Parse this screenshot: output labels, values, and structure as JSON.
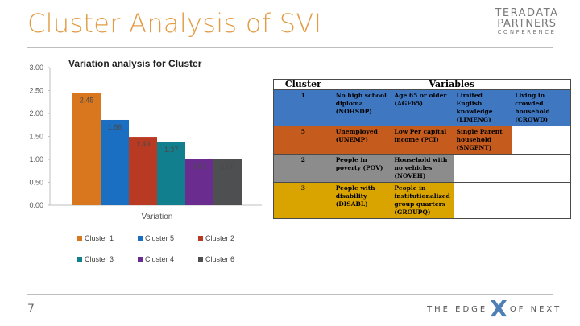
{
  "slide": {
    "title": "Cluster Analysis of SVI",
    "page_number": "7",
    "logo": {
      "line1": "TERADATA",
      "line2": "PARTNERS",
      "line3": "CONFERENCE"
    },
    "tagline": {
      "left": "THE EDGE",
      "mark": "X",
      "right": "OF NEXT",
      "mark_color": "#4e7fb5"
    }
  },
  "chart_data": {
    "type": "bar",
    "title": "Variation analysis for Cluster",
    "categories": [
      "Variation"
    ],
    "ylim": [
      0,
      3
    ],
    "yticks": [
      "0.00",
      "0.50",
      "1.00",
      "1.50",
      "2.00",
      "2.50",
      "3.00"
    ],
    "legend_position": "bottom",
    "series": [
      {
        "name": "Cluster 1",
        "values": [
          2.45
        ],
        "label": "2.45",
        "color": "#d9771f"
      },
      {
        "name": "Cluster 5",
        "values": [
          1.86
        ],
        "label": "1.86",
        "color": "#1b6fc2"
      },
      {
        "name": "Cluster 2",
        "values": [
          1.49
        ],
        "label": "1.49",
        "color": "#b93a22"
      },
      {
        "name": "Cluster 3",
        "values": [
          1.37
        ],
        "label": "1.37",
        "color": "#127f8f"
      },
      {
        "name": "Cluster 4",
        "values": [
          1.01
        ],
        "label": "1.01",
        "color": "#6a2c8e"
      },
      {
        "name": "Cluster 6",
        "values": [
          1.0
        ],
        "label": "1.00",
        "color": "#4d4f51"
      }
    ]
  },
  "table": {
    "headers": {
      "cluster": "Cluster",
      "variables": "Variables"
    },
    "rows": [
      {
        "cluster": "1",
        "color": "#3f77c1",
        "cells": [
          "No high school diploma (NOHSDP)",
          "Age 65 or older (AGE65)",
          "Limited English knowledge (LIMENG)",
          "Living in crowded household (CROWD)"
        ]
      },
      {
        "cluster": "5",
        "color": "#c65b1e",
        "cells": [
          "Unemployed (UNEMP)",
          "Low Per capital income (PCI)",
          "Single Parent household (SNGPNT)",
          ""
        ]
      },
      {
        "cluster": "2",
        "color": "#8c8c8c",
        "cells": [
          "People in poverty (POV)",
          "Household with no vehicles (NOVEH)",
          "",
          ""
        ]
      },
      {
        "cluster": "3",
        "color": "#d9a400",
        "cells": [
          "People with disability (DISABL)",
          "People in institutionalized group quarters (GROUPQ)",
          "",
          ""
        ]
      }
    ]
  }
}
